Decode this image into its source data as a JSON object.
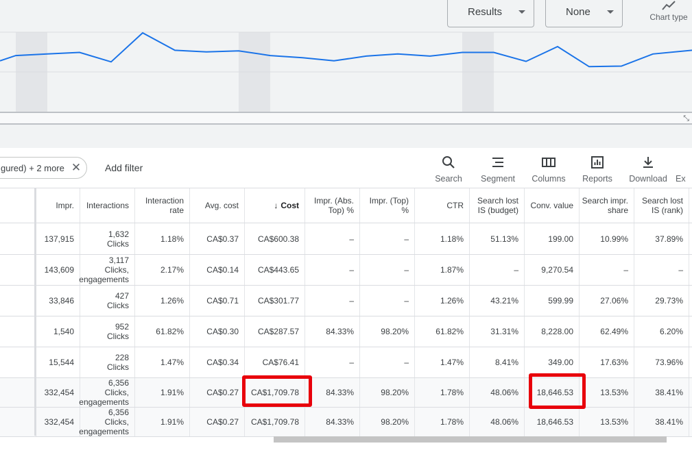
{
  "chart_controls": {
    "results": {
      "label": "Results",
      "color": "#1a73e8"
    },
    "none": {
      "label": "None",
      "color": "#c5221f"
    },
    "chart_type_label": "Chart type"
  },
  "line_color": "#1a73e8",
  "line_series": [
    0.47,
    0.57,
    0.6,
    0.63,
    0.45,
    1.0,
    0.67,
    0.64,
    0.66,
    0.57,
    0.53,
    0.47,
    0.56,
    0.6,
    0.56,
    0.63,
    0.63,
    0.46,
    0.74,
    0.36,
    0.37,
    0.6,
    0.67
  ],
  "toolbar": {
    "filter_chip_text": "gured) + 2 more",
    "add_filter": "Add filter",
    "tools": [
      "Search",
      "Segment",
      "Columns",
      "Reports",
      "Download",
      "Ex"
    ]
  },
  "columns": [
    "Impr.",
    "Interactions",
    "Interaction rate",
    "Avg. cost",
    "Cost",
    "Impr. (Abs. Top) %",
    "Impr. (Top) %",
    "CTR",
    "Search lost IS (budget)",
    "Conv. value",
    "Search impr. share",
    "Search lost IS (rank)"
  ],
  "sorted_column_arrow": "↓",
  "rows": [
    {
      "impr": "137,915",
      "interactions": [
        "1,632",
        "Clicks"
      ],
      "rate": "1.18%",
      "avg_cost": "CA$0.37",
      "cost": "CA$600.38",
      "abs_top": "–",
      "top": "–",
      "ctr": "1.18%",
      "lost_budget": "51.13%",
      "conv_value": "199.00",
      "impr_share": "10.99%",
      "lost_rank": "37.89%"
    },
    {
      "impr": "143,609",
      "interactions": [
        "3,117",
        "Clicks,",
        "engagements"
      ],
      "rate": "2.17%",
      "avg_cost": "CA$0.14",
      "cost": "CA$443.65",
      "abs_top": "–",
      "top": "–",
      "ctr": "1.87%",
      "lost_budget": "–",
      "conv_value": "9,270.54",
      "impr_share": "–",
      "lost_rank": "–"
    },
    {
      "impr": "33,846",
      "interactions": [
        "427",
        "Clicks"
      ],
      "rate": "1.26%",
      "avg_cost": "CA$0.71",
      "cost": "CA$301.77",
      "abs_top": "–",
      "top": "–",
      "ctr": "1.26%",
      "lost_budget": "43.21%",
      "conv_value": "599.99",
      "impr_share": "27.06%",
      "lost_rank": "29.73%"
    },
    {
      "impr": "1,540",
      "interactions": [
        "952",
        "Clicks"
      ],
      "rate": "61.82%",
      "avg_cost": "CA$0.30",
      "cost": "CA$287.57",
      "abs_top": "84.33%",
      "top": "98.20%",
      "ctr": "61.82%",
      "lost_budget": "31.31%",
      "conv_value": "8,228.00",
      "impr_share": "62.49%",
      "lost_rank": "6.20%"
    },
    {
      "impr": "15,544",
      "interactions": [
        "228",
        "Clicks"
      ],
      "rate": "1.47%",
      "avg_cost": "CA$0.34",
      "cost": "CA$76.41",
      "abs_top": "–",
      "top": "–",
      "ctr": "1.47%",
      "lost_budget": "8.41%",
      "conv_value": "349.00",
      "impr_share": "17.63%",
      "lost_rank": "73.96%"
    },
    {
      "impr": "332,454",
      "interactions": [
        "6,356",
        "Clicks,",
        "engagements"
      ],
      "rate": "1.91%",
      "avg_cost": "CA$0.27",
      "cost": "CA$1,709.78",
      "abs_top": "84.33%",
      "top": "98.20%",
      "ctr": "1.78%",
      "lost_budget": "48.06%",
      "conv_value": "18,646.53",
      "impr_share": "13.53%",
      "lost_rank": "38.41%"
    },
    {
      "impr": "332,454",
      "interactions": [
        "6,356",
        "Clicks,",
        "engagements"
      ],
      "rate": "1.91%",
      "avg_cost": "CA$0.27",
      "cost": "CA$1,709.78",
      "abs_top": "84.33%",
      "top": "98.20%",
      "ctr": "1.78%",
      "lost_budget": "48.06%",
      "conv_value": "18,646.53",
      "impr_share": "13.53%",
      "lost_rank": "38.41%"
    }
  ],
  "highlight_color": "#e8000b"
}
